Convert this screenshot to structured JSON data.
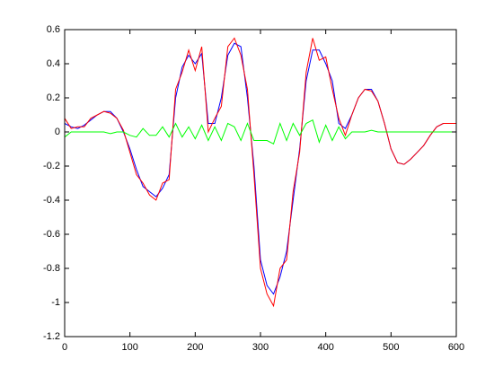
{
  "chart_data": {
    "type": "line",
    "x": [
      0,
      10,
      20,
      30,
      40,
      50,
      60,
      70,
      80,
      90,
      100,
      110,
      120,
      130,
      140,
      150,
      160,
      170,
      180,
      190,
      200,
      210,
      220,
      230,
      240,
      250,
      260,
      270,
      280,
      290,
      300,
      310,
      320,
      330,
      340,
      350,
      360,
      370,
      380,
      390,
      400,
      410,
      420,
      430,
      440,
      450,
      460,
      470,
      480,
      490,
      500,
      510,
      520,
      530,
      540,
      550,
      560,
      570,
      580,
      590,
      600
    ],
    "series": [
      {
        "color": "#0000ff",
        "values": [
          0.05,
          0.03,
          0.02,
          0.04,
          0.07,
          0.1,
          0.12,
          0.12,
          0.08,
          0.0,
          -0.1,
          -0.22,
          -0.32,
          -0.35,
          -0.38,
          -0.33,
          -0.25,
          0.2,
          0.38,
          0.45,
          0.4,
          0.46,
          0.05,
          0.05,
          0.2,
          0.45,
          0.52,
          0.5,
          0.2,
          -0.2,
          -0.75,
          -0.9,
          -0.95,
          -0.85,
          -0.7,
          -0.4,
          -0.1,
          0.3,
          0.48,
          0.48,
          0.4,
          0.3,
          0.05,
          0.02,
          0.1,
          0.2,
          0.25,
          0.25,
          0.18,
          0.05,
          -0.1,
          -0.18,
          -0.19,
          -0.16,
          -0.12,
          -0.08,
          -0.02,
          0.03,
          0.05,
          0.05,
          0.05
        ]
      },
      {
        "color": "#ff0000",
        "values": [
          0.08,
          0.02,
          0.03,
          0.03,
          0.08,
          0.1,
          0.12,
          0.11,
          0.08,
          0.01,
          -0.12,
          -0.25,
          -0.3,
          -0.37,
          -0.4,
          -0.3,
          -0.28,
          0.25,
          0.35,
          0.48,
          0.36,
          0.5,
          0.0,
          0.08,
          0.15,
          0.5,
          0.55,
          0.45,
          0.25,
          -0.25,
          -0.8,
          -0.95,
          -1.02,
          -0.8,
          -0.75,
          -0.35,
          -0.12,
          0.35,
          0.55,
          0.42,
          0.44,
          0.25,
          0.08,
          -0.02,
          0.1,
          0.2,
          0.25,
          0.24,
          0.18,
          0.05,
          -0.1,
          -0.18,
          -0.19,
          -0.16,
          -0.12,
          -0.08,
          -0.02,
          0.03,
          0.05,
          0.05,
          0.05
        ]
      },
      {
        "color": "#00ff00",
        "values": [
          -0.03,
          0.0,
          0.0,
          0.0,
          0.0,
          0.0,
          0.0,
          -0.01,
          0.0,
          0.0,
          -0.02,
          -0.03,
          0.02,
          -0.02,
          -0.02,
          0.03,
          -0.03,
          0.05,
          -0.03,
          0.03,
          -0.04,
          0.04,
          -0.05,
          0.03,
          -0.05,
          0.05,
          0.03,
          -0.05,
          0.05,
          -0.05,
          -0.05,
          -0.05,
          -0.07,
          0.05,
          -0.05,
          0.05,
          -0.02,
          0.05,
          0.07,
          -0.06,
          0.04,
          -0.05,
          0.03,
          -0.04,
          0.0,
          0.0,
          0.0,
          0.01,
          0.0,
          0.0,
          0.0,
          0.0,
          0.0,
          0.0,
          0.0,
          0.0,
          0.0,
          0.0,
          0.0,
          0.0,
          0.0
        ]
      }
    ],
    "xlim": [
      0,
      600
    ],
    "xticks": [
      0,
      100,
      200,
      300,
      400,
      500,
      600
    ],
    "ylim": [
      -1.2,
      0.6
    ],
    "yticks": [
      -1.2,
      -1,
      -0.8,
      -0.6,
      -0.4,
      -0.2,
      0,
      0.2,
      0.4,
      0.6
    ]
  }
}
